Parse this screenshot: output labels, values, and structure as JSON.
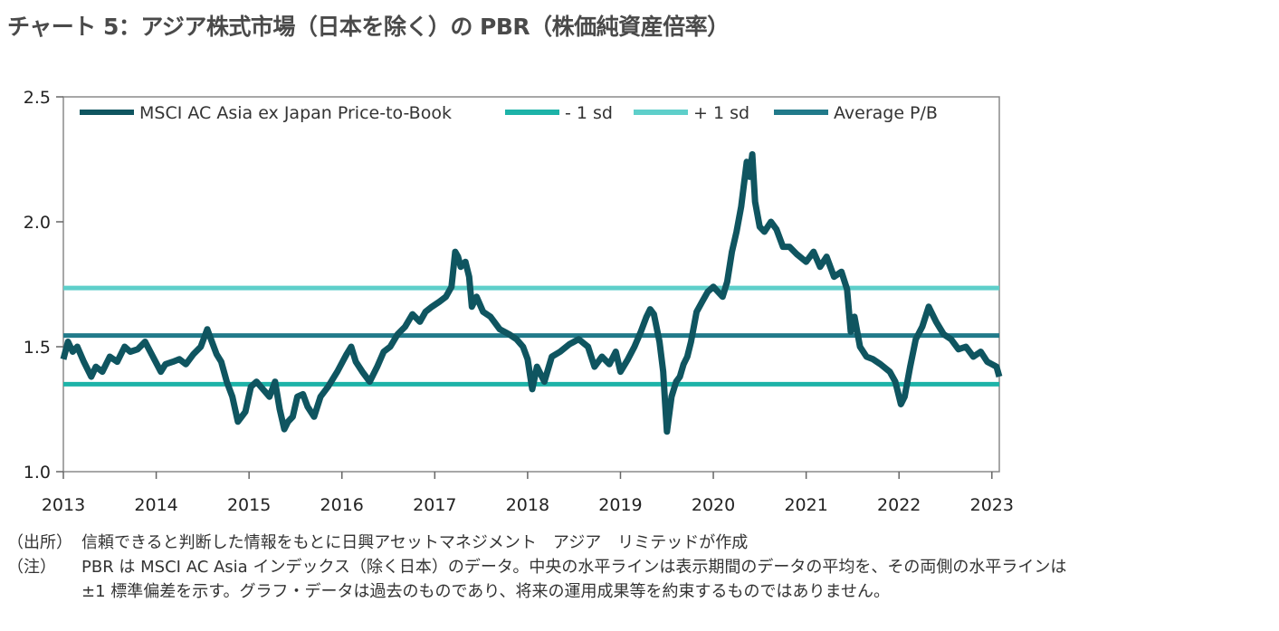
{
  "title": "チャート 5：アジア株式市場（日本を除く）の PBR（株価純資産倍率）",
  "chart_data": {
    "type": "line",
    "xlim": [
      2013.0,
      2023.08
    ],
    "ylim": [
      1.0,
      2.5
    ],
    "y_ticks": [
      {
        "value": 1.0,
        "label": "1.0"
      },
      {
        "value": 1.5,
        "label": "1.5"
      },
      {
        "value": 2.0,
        "label": "2.0"
      },
      {
        "value": 2.5,
        "label": "2.5"
      }
    ],
    "x_ticks": [
      {
        "value": 2013,
        "label": "2013"
      },
      {
        "value": 2014,
        "label": "2014"
      },
      {
        "value": 2015,
        "label": "2015"
      },
      {
        "value": 2016,
        "label": "2016"
      },
      {
        "value": 2017,
        "label": "2017"
      },
      {
        "value": 2018,
        "label": "2018"
      },
      {
        "value": 2019,
        "label": "2019"
      },
      {
        "value": 2020,
        "label": "2020"
      },
      {
        "value": 2021,
        "label": "2021"
      },
      {
        "value": 2022,
        "label": "2022"
      },
      {
        "value": 2023,
        "label": "2023"
      }
    ],
    "legend_position": "top",
    "series": [
      {
        "name": "MSCI AC Asia ex Japan Price-to-Book",
        "color": "#0f5560",
        "x": [
          2013.0,
          2013.05,
          2013.1,
          2013.15,
          2013.22,
          2013.3,
          2013.35,
          2013.42,
          2013.5,
          2013.58,
          2013.66,
          2013.72,
          2013.8,
          2013.88,
          2013.95,
          2014.05,
          2014.1,
          2014.18,
          2014.25,
          2014.32,
          2014.4,
          2014.48,
          2014.55,
          2014.6,
          2014.65,
          2014.7,
          2014.76,
          2014.82,
          2014.88,
          2014.92,
          2014.96,
          2015.02,
          2015.08,
          2015.15,
          2015.22,
          2015.28,
          2015.33,
          2015.38,
          2015.42,
          2015.47,
          2015.52,
          2015.58,
          2015.63,
          2015.7,
          2015.77,
          2015.85,
          2015.95,
          2016.05,
          2016.1,
          2016.15,
          2016.22,
          2016.3,
          2016.38,
          2016.45,
          2016.52,
          2016.6,
          2016.68,
          2016.76,
          2016.84,
          2016.9,
          2016.97,
          2017.05,
          2017.12,
          2017.18,
          2017.22,
          2017.25,
          2017.28,
          2017.33,
          2017.37,
          2017.4,
          2017.45,
          2017.52,
          2017.6,
          2017.7,
          2017.8,
          2017.88,
          2017.95,
          2018.0,
          2018.05,
          2018.1,
          2018.18,
          2018.26,
          2018.35,
          2018.45,
          2018.55,
          2018.65,
          2018.72,
          2018.8,
          2018.88,
          2018.95,
          2019.0,
          2019.08,
          2019.15,
          2019.22,
          2019.28,
          2019.32,
          2019.36,
          2019.42,
          2019.46,
          2019.48,
          2019.5,
          2019.55,
          2019.6,
          2019.64,
          2019.68,
          2019.72,
          2019.76,
          2019.82,
          2019.88,
          2019.94,
          2020.0,
          2020.05,
          2020.1,
          2020.15,
          2020.2,
          2020.25,
          2020.3,
          2020.33,
          2020.36,
          2020.39,
          2020.42,
          2020.45,
          2020.5,
          2020.55,
          2020.62,
          2020.68,
          2020.75,
          2020.82,
          2020.9,
          2021.0,
          2021.08,
          2021.15,
          2021.22,
          2021.3,
          2021.38,
          2021.44,
          2021.48,
          2021.52,
          2021.58,
          2021.65,
          2021.72,
          2021.8,
          2021.9,
          2021.96,
          2022.02,
          2022.06,
          2022.12,
          2022.18,
          2022.25,
          2022.32,
          2022.4,
          2022.48,
          2022.56,
          2022.64,
          2022.72,
          2022.8,
          2022.88,
          2022.95,
          2023.0,
          2023.05,
          2023.08
        ],
        "values": [
          1.45,
          1.52,
          1.48,
          1.5,
          1.44,
          1.38,
          1.42,
          1.4,
          1.46,
          1.44,
          1.5,
          1.48,
          1.49,
          1.52,
          1.47,
          1.4,
          1.43,
          1.44,
          1.45,
          1.43,
          1.47,
          1.5,
          1.57,
          1.52,
          1.47,
          1.44,
          1.36,
          1.3,
          1.2,
          1.22,
          1.24,
          1.34,
          1.36,
          1.33,
          1.3,
          1.36,
          1.25,
          1.17,
          1.2,
          1.22,
          1.3,
          1.31,
          1.26,
          1.22,
          1.3,
          1.34,
          1.4,
          1.47,
          1.5,
          1.44,
          1.4,
          1.36,
          1.42,
          1.48,
          1.5,
          1.55,
          1.58,
          1.63,
          1.6,
          1.64,
          1.66,
          1.68,
          1.7,
          1.74,
          1.88,
          1.86,
          1.82,
          1.84,
          1.78,
          1.66,
          1.7,
          1.64,
          1.62,
          1.57,
          1.55,
          1.53,
          1.5,
          1.45,
          1.33,
          1.42,
          1.36,
          1.46,
          1.48,
          1.51,
          1.53,
          1.5,
          1.42,
          1.46,
          1.43,
          1.48,
          1.4,
          1.45,
          1.5,
          1.56,
          1.62,
          1.65,
          1.63,
          1.52,
          1.4,
          1.28,
          1.16,
          1.3,
          1.36,
          1.38,
          1.43,
          1.46,
          1.52,
          1.64,
          1.68,
          1.72,
          1.74,
          1.72,
          1.7,
          1.76,
          1.88,
          1.96,
          2.06,
          2.15,
          2.24,
          2.18,
          2.27,
          2.08,
          1.98,
          1.96,
          2.0,
          1.97,
          1.9,
          1.9,
          1.87,
          1.84,
          1.88,
          1.82,
          1.86,
          1.78,
          1.8,
          1.73,
          1.56,
          1.62,
          1.5,
          1.46,
          1.45,
          1.43,
          1.4,
          1.36,
          1.27,
          1.3,
          1.42,
          1.53,
          1.58,
          1.66,
          1.6,
          1.55,
          1.53,
          1.49,
          1.5,
          1.46,
          1.48,
          1.44,
          1.43,
          1.42,
          1.38
        ]
      },
      {
        "name": "- 1 sd",
        "color": "#1db3a8",
        "x": [
          2013.0,
          2023.08
        ],
        "values": [
          1.35,
          1.35
        ]
      },
      {
        "name": "+ 1 sd",
        "color": "#5ecfca",
        "x": [
          2013.0,
          2023.08
        ],
        "values": [
          1.735,
          1.735
        ]
      },
      {
        "name": "Average P/B",
        "color": "#217a8a",
        "x": [
          2013.0,
          2023.08
        ],
        "values": [
          1.545,
          1.545
        ]
      }
    ]
  },
  "notes": [
    {
      "label": "（出所）",
      "text": "信頼できると判断した情報をもとに日興アセットマネジメント　アジア　リミテッドが作成"
    },
    {
      "label": "（注）",
      "text": "PBR は MSCI AC Asia インデックス（除く日本）のデータ。中央の水平ラインは表示期間のデータの平均を、その両側の水平ラインは"
    },
    {
      "label": "",
      "text": "±1 標準偏差を示す。グラフ・データは過去のものであり、将来の運用成果等を約束するものではありません。"
    }
  ]
}
